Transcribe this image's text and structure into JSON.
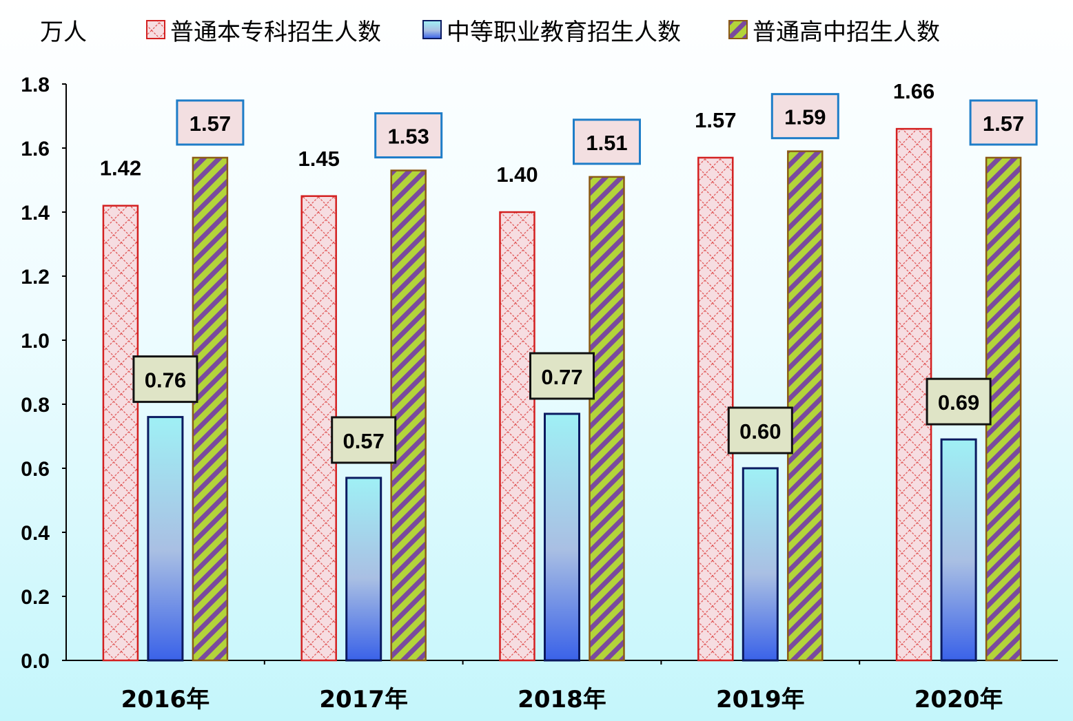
{
  "unit_label": "万人",
  "colors": {
    "series1_border": "#d32020",
    "series1_fill": "#f6dde1",
    "series2_border": "#0a1a60",
    "series2_top": "#9ff0f5",
    "series2_bottom": "#3a62e8",
    "series3_border": "#8b5a14",
    "series3_fill_a": "#b3d43a",
    "series3_fill_b": "#7a4a9e",
    "label_box_blue_border": "#1e7dc8",
    "label_box_pink_fill": "#f3dfe1",
    "label_box_dark_border": "#111111",
    "label_box_green_fill": "#dfe4c6"
  },
  "chart_data": {
    "type": "bar",
    "categories": [
      "2016年",
      "2017年",
      "2018年",
      "2019年",
      "2020年"
    ],
    "series": [
      {
        "name": "普通本专科招生人数",
        "values": [
          1.42,
          1.45,
          1.4,
          1.57,
          1.66
        ]
      },
      {
        "name": "中等职业教育招生人数",
        "values": [
          0.76,
          0.57,
          0.77,
          0.6,
          0.69
        ]
      },
      {
        "name": "普通高中招生人数",
        "values": [
          1.57,
          1.53,
          1.51,
          1.59,
          1.57
        ]
      }
    ],
    "data_labels": {
      "series1": [
        "1.42",
        "1.45",
        "1.40",
        "1.57",
        "1.66"
      ],
      "series2": [
        "0.76",
        "0.57",
        "0.77",
        "0.60",
        "0.69"
      ],
      "series3": [
        "1.57",
        "1.53",
        "1.51",
        "1.59",
        "1.57"
      ]
    },
    "ylim": [
      0,
      1.8
    ],
    "y_ticks": [
      "0.0",
      "0.2",
      "0.4",
      "0.6",
      "0.8",
      "1.0",
      "1.2",
      "1.4",
      "1.6",
      "1.8"
    ],
    "legend_position": "top",
    "grid": false
  }
}
